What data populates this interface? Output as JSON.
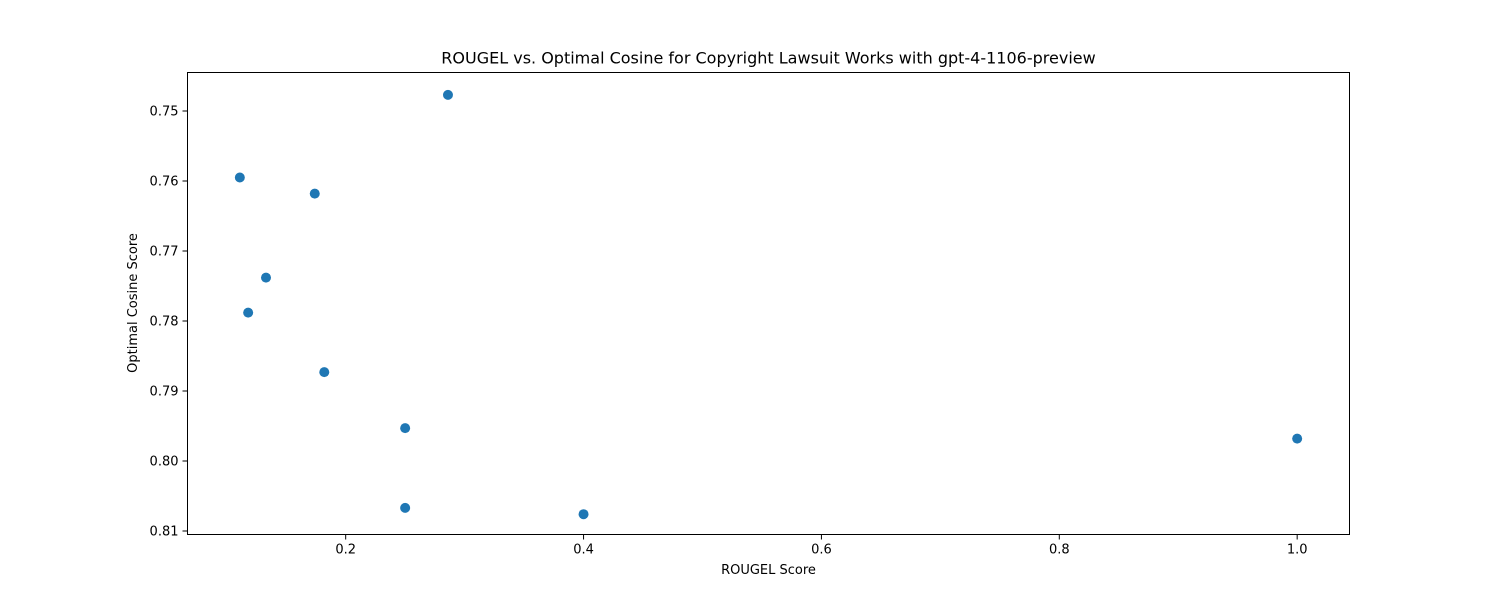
{
  "chart_data": {
    "type": "scatter",
    "title": "ROUGEL vs. Optimal Cosine for Copyright Lawsuit Works with gpt-4-1106-preview",
    "xlabel": "ROUGEL Score",
    "ylabel": "Optimal Cosine Score",
    "xlim": [
      0.067,
      1.044
    ],
    "ylim": [
      0.7445,
      0.8105
    ],
    "y_inverted": true,
    "grid": false,
    "point_color": "#1f77b4",
    "x_ticks": [
      0.2,
      0.4,
      0.6,
      0.8,
      1.0
    ],
    "x_tick_labels": [
      "0.2",
      "0.4",
      "0.6",
      "0.8",
      "1.0"
    ],
    "y_ticks": [
      0.75,
      0.76,
      0.77,
      0.78,
      0.79,
      0.8,
      0.81
    ],
    "y_tick_labels": [
      "0.75",
      "0.76",
      "0.77",
      "0.78",
      "0.79",
      "0.80",
      "0.81"
    ],
    "points": [
      {
        "x": 0.286,
        "y": 0.7477
      },
      {
        "x": 0.111,
        "y": 0.7595
      },
      {
        "x": 0.174,
        "y": 0.7618
      },
      {
        "x": 0.133,
        "y": 0.7738
      },
      {
        "x": 0.118,
        "y": 0.7788
      },
      {
        "x": 0.182,
        "y": 0.7873
      },
      {
        "x": 0.25,
        "y": 0.7953
      },
      {
        "x": 1.0,
        "y": 0.7968
      },
      {
        "x": 0.25,
        "y": 0.8067
      },
      {
        "x": 0.4,
        "y": 0.8076
      }
    ]
  }
}
